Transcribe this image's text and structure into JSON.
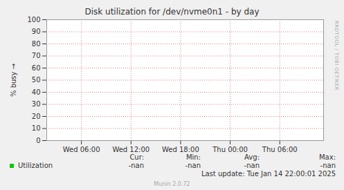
{
  "chart_data": {
    "type": "line",
    "title": "Disk utilization for /dev/nvme0n1 - by day",
    "y_label": "% busy",
    "x": [
      6,
      12,
      18,
      24,
      30
    ],
    "series": [
      {
        "name": "Utilization",
        "color": "#00cc00",
        "values": [
          null,
          null,
          null,
          null,
          null
        ],
        "stats": [
          "-nan",
          "-nan",
          "-nan",
          "-nan"
        ]
      }
    ],
    "legend_columns": [
      "Cur:",
      "Min:",
      "Avg:",
      "Max:"
    ],
    "xlim": [
      1.8,
      35.3
    ],
    "xticks": [
      {
        "value": 6,
        "label": "Wed 06:00"
      },
      {
        "value": 12,
        "label": "Wed 12:00"
      },
      {
        "value": 18,
        "label": "Wed 18:00"
      },
      {
        "value": 24,
        "label": "Thu 00:00"
      },
      {
        "value": 30,
        "label": "Thu 06:00"
      }
    ],
    "ylim": [
      0,
      100
    ],
    "yticks": [
      0,
      10,
      20,
      30,
      40,
      50,
      60,
      70,
      80,
      90,
      100
    ],
    "grid": true,
    "footer": "Last update: Tue Jan 14 22:00:01 2025",
    "credit": "Munin 2.0.72",
    "watermark": "RRDTOOL / TOBI OETIKER"
  }
}
